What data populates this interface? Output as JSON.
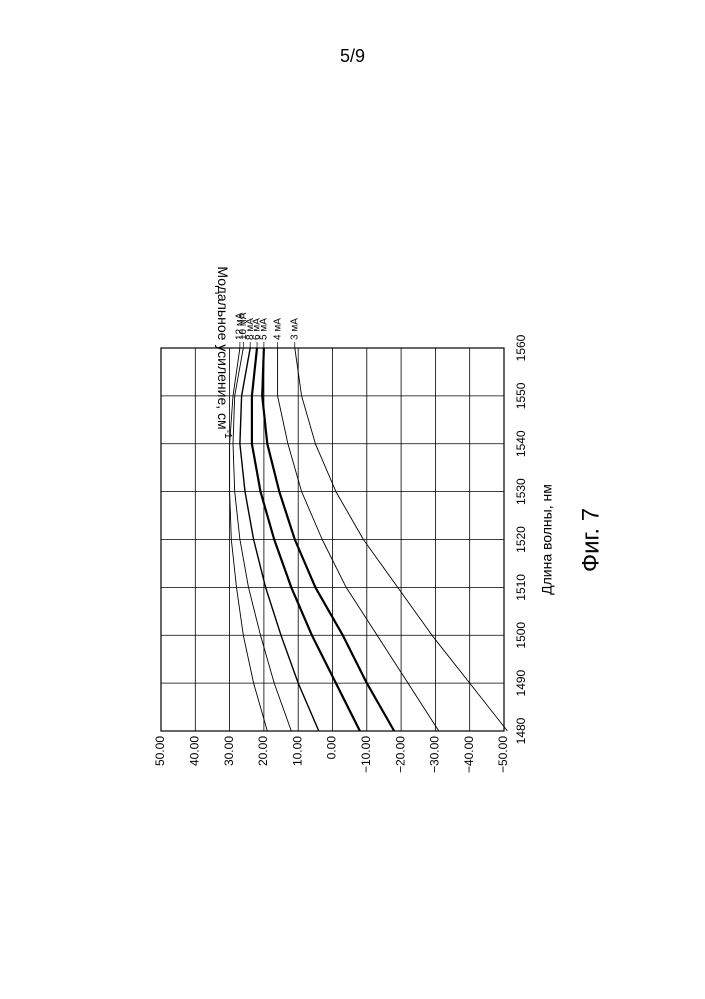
{
  "page_number": "5/9",
  "figure_caption": "Фиг. 7",
  "chart_data": {
    "type": "line",
    "title": "",
    "xlabel": "Длина волны, нм",
    "ylabel": "Модальное усиление, см^-1",
    "xlim": [
      1480,
      1560
    ],
    "ylim": [
      -50,
      50
    ],
    "x_ticks": [
      "1480",
      "1490",
      "1500",
      "1510",
      "1520",
      "1530",
      "1540",
      "1550",
      "1560"
    ],
    "y_ticks": [
      "−50.00",
      "−40.00",
      "−30.00",
      "−20.00",
      "−10.00",
      "0.00",
      "10.00",
      "20.00",
      "30.00",
      "40.00",
      "50.00"
    ],
    "grid": true,
    "orientation": "rotated 90° counter-clockwise on page",
    "x": [
      1480,
      1490,
      1500,
      1510,
      1520,
      1530,
      1540,
      1550,
      1560
    ],
    "series": [
      {
        "name": "12 мА",
        "values": [
          19,
          23,
          26,
          28,
          29.5,
          30,
          30,
          29,
          27
        ],
        "weight": "thin"
      },
      {
        "name": "10 мА",
        "values": [
          12,
          17,
          21,
          24.5,
          27,
          28.5,
          29,
          28.5,
          26
        ],
        "weight": "thin"
      },
      {
        "name": "8 мА",
        "values": [
          4,
          10,
          15,
          19.5,
          23,
          25.5,
          27,
          26.5,
          24
        ],
        "weight": "medium"
      },
      {
        "name": "6 мА",
        "values": [
          -8,
          -1,
          6,
          12,
          17,
          21,
          23.5,
          23.5,
          22
        ],
        "weight": "bold"
      },
      {
        "name": "5 мА",
        "values": [
          -18,
          -10,
          -3,
          5,
          11,
          15.5,
          19,
          20.5,
          20
        ],
        "weight": "bold"
      },
      {
        "name": "4 мА",
        "values": [
          -31,
          -22,
          -13,
          -4,
          3,
          9,
          13,
          16,
          16
        ],
        "weight": "thin"
      },
      {
        "name": "3 мА",
        "values": [
          -51,
          -40,
          -29,
          -19,
          -9,
          -1,
          5,
          9,
          11
        ],
        "weight": "thin"
      }
    ]
  }
}
